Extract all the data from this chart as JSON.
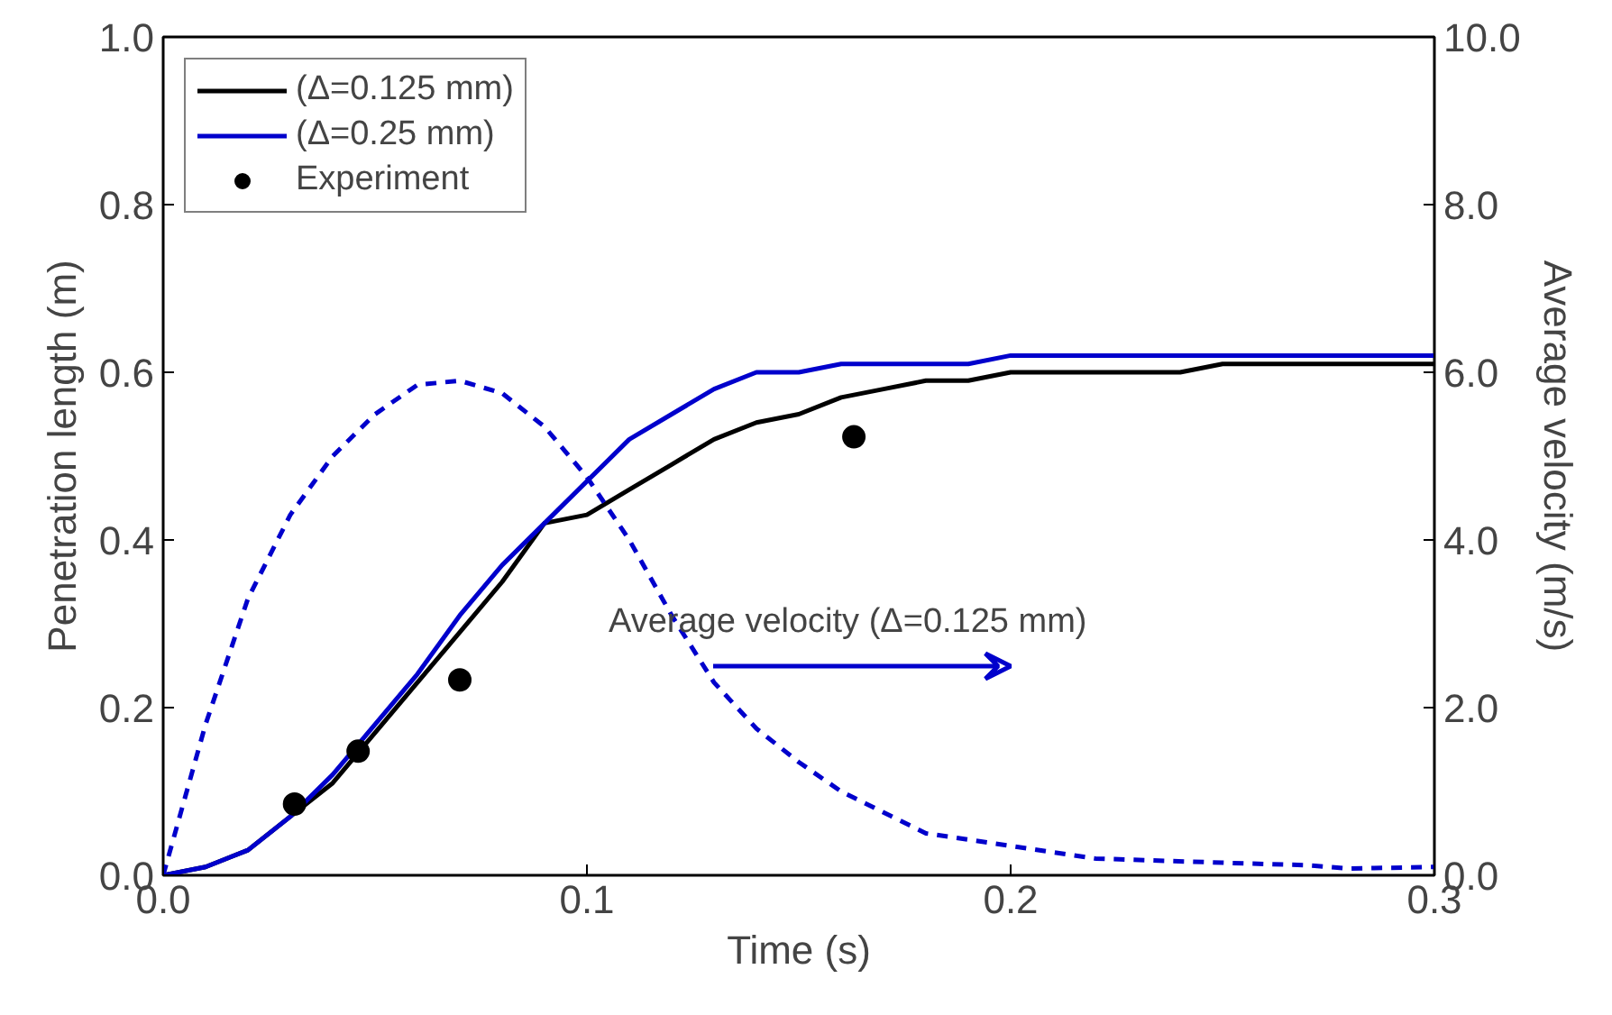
{
  "chart_data": {
    "type": "line",
    "xlabel": "Time (s)",
    "ylabel": "Penetration length (m)",
    "y2label": "Average velocity (m/s)",
    "xlim": [
      0,
      0.3
    ],
    "xticks": [
      {
        "value": 0,
        "label": "0.0"
      },
      0.1,
      0.2,
      0.3
    ],
    "ylim": [
      0,
      1
    ],
    "yticks": [
      {
        "value": 0,
        "label": "0.0"
      },
      0.2,
      0.4,
      0.6,
      0.8,
      {
        "value": 1,
        "label": "1.0"
      }
    ],
    "y2lim": [
      0,
      10
    ],
    "y2ticks": [
      {
        "value": 0,
        "label": "0.0"
      },
      {
        "value": 2,
        "label": "2.0"
      },
      {
        "value": 4,
        "label": "4.0"
      },
      {
        "value": 6,
        "label": "6.0"
      },
      {
        "value": 8,
        "label": "8.0"
      },
      {
        "value": 10,
        "label": "10.0"
      }
    ],
    "grid": false,
    "legend": "top left",
    "series": [
      {
        "name": "(Δ=0.125 mm)",
        "color": "#000000",
        "line_style": "solid",
        "x": [
          0,
          0.01,
          0.02,
          0.03,
          0.04,
          0.05,
          0.06,
          0.07,
          0.08,
          0.09,
          0.1,
          0.11,
          0.12,
          0.13,
          0.14,
          0.15,
          0.16,
          0.17,
          0.18,
          0.19,
          0.2,
          0.24,
          0.25,
          0.3
        ],
        "values": [
          0,
          0.01,
          0.03,
          0.07,
          0.11,
          0.17,
          0.23,
          0.29,
          0.35,
          0.42,
          0.43,
          0.46,
          0.49,
          0.52,
          0.54,
          0.55,
          0.57,
          0.58,
          0.59,
          0.59,
          0.6,
          0.6,
          0.61,
          0.61
        ]
      },
      {
        "name": "(Δ=0.25 mm)",
        "color": "#0000cc",
        "line_style": "solid",
        "x": [
          0,
          0.01,
          0.02,
          0.03,
          0.04,
          0.05,
          0.06,
          0.07,
          0.08,
          0.09,
          0.1,
          0.11,
          0.12,
          0.13,
          0.14,
          0.15,
          0.16,
          0.19,
          0.2,
          0.3
        ],
        "values": [
          0,
          0.01,
          0.03,
          0.07,
          0.12,
          0.18,
          0.24,
          0.31,
          0.37,
          0.42,
          0.47,
          0.52,
          0.55,
          0.58,
          0.6,
          0.6,
          0.61,
          0.61,
          0.62,
          0.62
        ]
      },
      {
        "name": "Experiment",
        "color": "#000000",
        "type": "scatter",
        "marker": "circle",
        "x": [
          0.031,
          0.046,
          0.07,
          0.163
        ],
        "values": [
          0.085,
          0.148,
          0.233,
          0.523
        ]
      },
      {
        "color": "#0000cc",
        "line_style": "dashed",
        "axis": "y2",
        "x": [
          0,
          0.01,
          0.02,
          0.03,
          0.04,
          0.05,
          0.06,
          0.07,
          0.08,
          0.09,
          0.1,
          0.11,
          0.12,
          0.13,
          0.14,
          0.15,
          0.16,
          0.17,
          0.18,
          0.2,
          0.22,
          0.25,
          0.27,
          0.28,
          0.3
        ],
        "values": [
          0,
          1.8,
          3.3,
          4.3,
          5.0,
          5.5,
          5.85,
          5.9,
          5.75,
          5.35,
          4.75,
          4.0,
          3.1,
          2.3,
          1.75,
          1.35,
          1.0,
          0.75,
          0.5,
          0.35,
          0.2,
          0.15,
          0.12,
          0.08,
          0.1
        ]
      }
    ],
    "annotations": [
      "Average velocity (Δ=0.125 mm)"
    ]
  }
}
